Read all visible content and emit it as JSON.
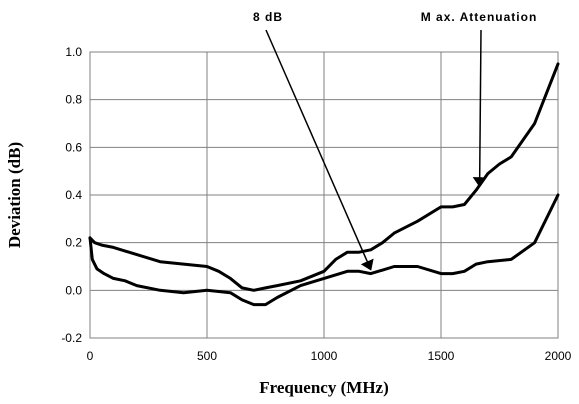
{
  "chart_data": {
    "type": "line",
    "title": "",
    "xlabel": "Frequency (MHz)",
    "ylabel": "Deviation (dB)",
    "xlim": [
      0,
      2000
    ],
    "ylim": [
      -0.2,
      1.0
    ],
    "x_ticks": [
      "0",
      "500",
      "1000",
      "1500",
      "2000"
    ],
    "y_ticks": [
      "-0.2",
      "0.0",
      "0.2",
      "0.4",
      "0.6",
      "0.8",
      "1.0"
    ],
    "grid": true,
    "legend": "none",
    "series": [
      {
        "x": [
          0,
          20,
          50,
          100,
          200,
          300,
          400,
          500,
          550,
          600,
          650,
          700,
          750,
          800,
          900,
          1000,
          1050,
          1100,
          1150,
          1200,
          1250,
          1300,
          1400,
          1500,
          1550,
          1600,
          1650,
          1700,
          1750,
          1800,
          1900,
          2000
        ],
        "y": [
          0.22,
          0.2,
          0.19,
          0.18,
          0.15,
          0.12,
          0.11,
          0.1,
          0.08,
          0.05,
          0.01,
          0.0,
          0.01,
          0.02,
          0.04,
          0.08,
          0.13,
          0.16,
          0.16,
          0.17,
          0.2,
          0.24,
          0.29,
          0.35,
          0.35,
          0.36,
          0.42,
          0.49,
          0.53,
          0.56,
          0.7,
          0.95
        ]
      },
      {
        "x": [
          0,
          10,
          30,
          60,
          100,
          150,
          200,
          300,
          400,
          500,
          600,
          650,
          700,
          750,
          800,
          900,
          1000,
          1100,
          1150,
          1200,
          1300,
          1400,
          1500,
          1550,
          1600,
          1650,
          1700,
          1800,
          1900,
          2000
        ],
        "y": [
          0.22,
          0.13,
          0.09,
          0.07,
          0.05,
          0.04,
          0.02,
          0.0,
          -0.01,
          0.0,
          -0.01,
          -0.04,
          -0.06,
          -0.06,
          -0.03,
          0.02,
          0.05,
          0.08,
          0.08,
          0.07,
          0.1,
          0.1,
          0.07,
          0.07,
          0.08,
          0.11,
          0.12,
          0.13,
          0.2,
          0.4
        ]
      }
    ],
    "annotations": [
      {
        "text": "8 dB",
        "x": 1200,
        "y": 0.07
      },
      {
        "text": "M ax. Attenuation",
        "x": 1665,
        "y": 0.42
      }
    ]
  }
}
